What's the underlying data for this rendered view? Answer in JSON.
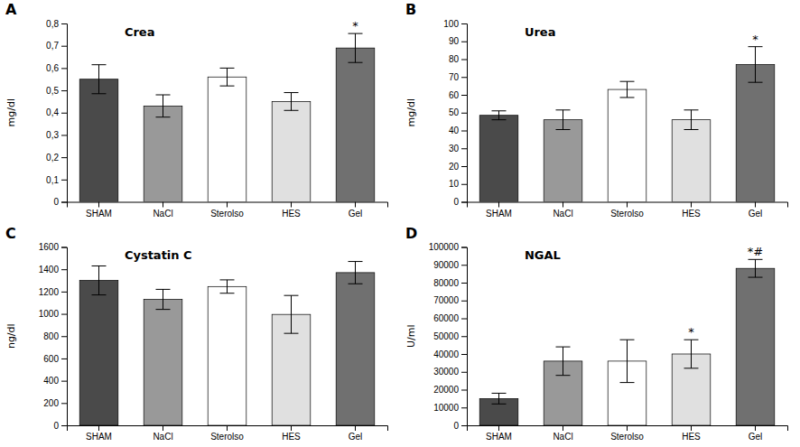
{
  "chart_data": [
    {
      "type": "bar",
      "label": "A",
      "title": "Crea",
      "ylabel": "mg/dl",
      "categories": [
        "SHAM",
        "NaCl",
        "Sterolso",
        "HES",
        "Gel"
      ],
      "values": [
        0.55,
        0.43,
        0.56,
        0.45,
        0.69
      ],
      "errors": [
        0.065,
        0.05,
        0.04,
        0.04,
        0.065
      ],
      "annotations": [
        null,
        null,
        null,
        null,
        "*"
      ],
      "colors": [
        "#4a4a4a",
        "#999999",
        "#ffffff",
        "#e0e0e0",
        "#707070"
      ],
      "ylim": [
        0,
        0.8
      ],
      "yticks": [
        0,
        {
          "value": 0.1,
          "label": "0,1"
        },
        {
          "value": 0.2,
          "label": "0,2"
        },
        {
          "value": 0.3,
          "label": "0,3"
        },
        {
          "value": 0.4,
          "label": "0,4"
        },
        {
          "value": 0.5,
          "label": "0,5"
        },
        {
          "value": 0.6,
          "label": "0,6"
        },
        {
          "value": 0.7,
          "label": "0,7"
        },
        {
          "value": 0.8,
          "label": "0,8"
        }
      ],
      "grid": false
    },
    {
      "type": "bar",
      "label": "B",
      "title": "Urea",
      "ylabel": "mg/dl",
      "categories": [
        "SHAM",
        "NaCl",
        "Sterolso",
        "HES",
        "Gel"
      ],
      "values": [
        48.5,
        46.0,
        63.0,
        46.0,
        77.0
      ],
      "errors": [
        2.5,
        5.5,
        4.5,
        5.5,
        10.0
      ],
      "annotations": [
        null,
        null,
        null,
        null,
        "*"
      ],
      "colors": [
        "#4a4a4a",
        "#999999",
        "#ffffff",
        "#e0e0e0",
        "#707070"
      ],
      "ylim": [
        0,
        100
      ],
      "yticks": [
        0,
        10,
        20,
        30,
        40,
        50,
        60,
        70,
        80,
        90,
        100
      ],
      "grid": false
    },
    {
      "type": "bar",
      "label": "C",
      "title": "Cystatin C",
      "ylabel": "ng/dl",
      "categories": [
        "SHAM",
        "NaCl",
        "Sterolso",
        "HES",
        "Gel"
      ],
      "values": [
        1300,
        1130,
        1245,
        995,
        1370
      ],
      "errors": [
        130,
        90,
        60,
        170,
        100
      ],
      "annotations": [
        null,
        null,
        null,
        null,
        null
      ],
      "colors": [
        "#4a4a4a",
        "#999999",
        "#ffffff",
        "#e0e0e0",
        "#707070"
      ],
      "ylim": [
        0,
        1600
      ],
      "yticks": [
        0,
        200,
        400,
        600,
        800,
        1000,
        1200,
        1400,
        1600
      ],
      "grid": false
    },
    {
      "type": "bar",
      "label": "D",
      "title": "NGAL",
      "ylabel": "U/ml",
      "categories": [
        "SHAM",
        "NaCl",
        "Sterolso",
        "HES",
        "Gel"
      ],
      "values": [
        15000,
        36000,
        36000,
        40000,
        88000
      ],
      "errors": [
        3000,
        8000,
        12000,
        8000,
        5000
      ],
      "annotations": [
        null,
        null,
        null,
        "*",
        "*#"
      ],
      "colors": [
        "#4a4a4a",
        "#999999",
        "#ffffff",
        "#e0e0e0",
        "#707070"
      ],
      "ylim": [
        0,
        100000
      ],
      "yticks": [
        0,
        10000,
        20000,
        30000,
        40000,
        50000,
        60000,
        70000,
        80000,
        90000,
        100000
      ],
      "grid": false
    }
  ]
}
